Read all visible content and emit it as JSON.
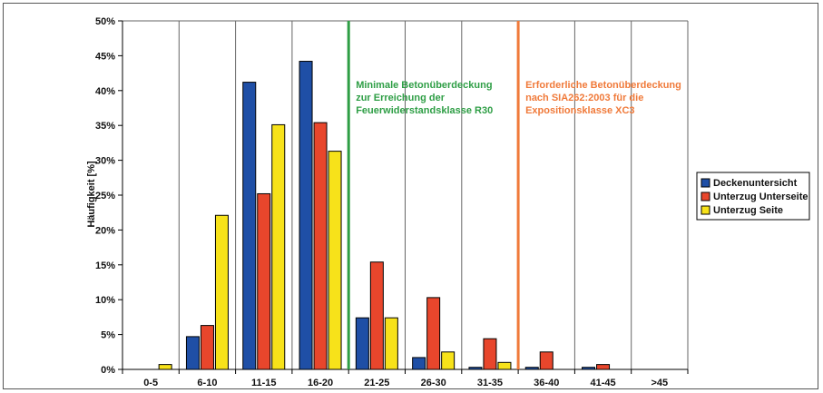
{
  "chart_data": {
    "type": "bar",
    "ylabel": "Häufigkeit [%]",
    "xlabel": "",
    "ylim": [
      0,
      50
    ],
    "yticks": [
      "0%",
      "5%",
      "10%",
      "15%",
      "20%",
      "25%",
      "30%",
      "35%",
      "40%",
      "45%",
      "50%"
    ],
    "categories": [
      "0-5",
      "6-10",
      "11-15",
      "16-20",
      "21-25",
      "26-30",
      "31-35",
      "36-40",
      "41-45",
      ">45"
    ],
    "series": [
      {
        "name": "Deckenuntersicht",
        "color": "#1f4fa6",
        "values": [
          0,
          4.7,
          41.2,
          44.2,
          7.4,
          1.7,
          0.3,
          0.3,
          0.3,
          0
        ]
      },
      {
        "name": "Unterzug Unterseite",
        "color": "#e8462c",
        "values": [
          0,
          6.3,
          25.2,
          35.4,
          15.4,
          10.3,
          4.4,
          2.5,
          0.7,
          0
        ]
      },
      {
        "name": "Unterzug Seite",
        "color": "#f7e21a",
        "values": [
          0.7,
          22.1,
          35.1,
          31.3,
          7.4,
          2.5,
          1.0,
          0,
          0,
          0
        ]
      }
    ],
    "grid": "vertical-category-separators",
    "legend_position": "right",
    "annotations": [
      {
        "text_lines": [
          "Minimale Betonüberdeckung",
          "zur Erreichung der",
          "Feuerwiderstandsklasse R30"
        ],
        "color": "#2e9e45",
        "x_boundary": "20/21"
      },
      {
        "text_lines": [
          "Erforderliche Betonüberdeckung",
          "nach SIA262:2003 für die",
          "Expositionsklasse XC3"
        ],
        "color": "#f07a3a",
        "x_boundary": "35/36"
      }
    ]
  }
}
